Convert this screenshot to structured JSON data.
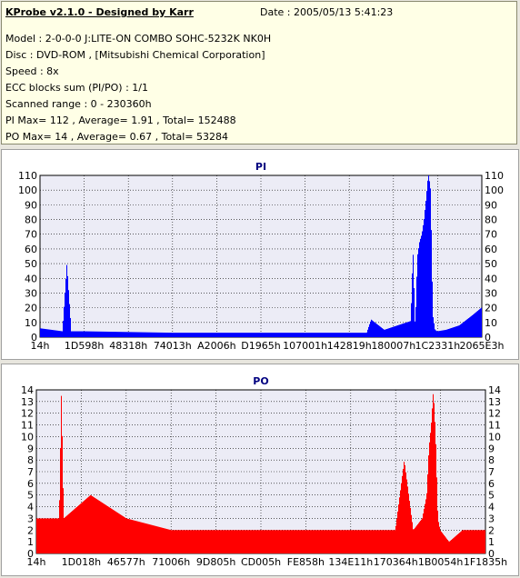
{
  "info": {
    "title": "KProbe v2.1.0 - Designed by Karr",
    "date": "Date : 2005/05/13 5:41:23",
    "lines": [
      "Model : 2-0-0-0 J:LITE-ON COMBO SOHC-5232K NK0H",
      "Disc : DVD-ROM ,  [Mitsubishi Chemical Corporation]",
      "Speed : 8x",
      "ECC blocks sum (PI/PO) : 1/1",
      "Scanned range : 0 - 230360h",
      "PI Max= 112 , Average= 1.91 , Total= 152488",
      "PO Max= 14 , Average= 0.67 , Total= 53284"
    ]
  },
  "chart_data": [
    {
      "type": "bar",
      "title": "PI",
      "color": "#0000ff",
      "ylim": [
        0,
        110
      ],
      "yticks": [
        0,
        10,
        20,
        30,
        40,
        50,
        60,
        70,
        80,
        90,
        100,
        110
      ],
      "xticks": [
        "14h",
        "1D598h",
        "48318h",
        "74013h",
        "A2006h",
        "D1965h",
        "107001h",
        "142819h",
        "180007h",
        "1C2331h",
        "2065E3h"
      ],
      "grid": true,
      "x_fraction": [
        0.0,
        0.05,
        0.06,
        0.07,
        0.1,
        0.3,
        0.5,
        0.7,
        0.74,
        0.75,
        0.78,
        0.8,
        0.82,
        0.84,
        0.845,
        0.85,
        0.855,
        0.86,
        0.865,
        0.87,
        0.875,
        0.88,
        0.885,
        0.89,
        0.895,
        0.9,
        0.92,
        0.95,
        0.98,
        1.0
      ],
      "values": [
        6,
        4,
        50,
        4,
        4,
        3,
        3,
        3,
        3,
        12,
        5,
        7,
        9,
        11,
        60,
        5,
        55,
        65,
        70,
        80,
        95,
        112,
        100,
        15,
        5,
        4,
        5,
        8,
        15,
        20
      ]
    },
    {
      "type": "bar",
      "title": "PO",
      "color": "#ff0000",
      "ylim": [
        0,
        14
      ],
      "yticks": [
        0,
        1,
        2,
        3,
        4,
        5,
        6,
        7,
        8,
        9,
        10,
        11,
        12,
        13,
        14
      ],
      "xticks": [
        "14h",
        "1D018h",
        "46577h",
        "71006h",
        "9D805h",
        "CD005h",
        "FE858h",
        "134E11h",
        "170364h",
        "1B0054h",
        "1F1835h"
      ],
      "grid": true,
      "x_fraction": [
        0.0,
        0.05,
        0.055,
        0.06,
        0.12,
        0.2,
        0.3,
        0.4,
        0.5,
        0.6,
        0.7,
        0.8,
        0.82,
        0.84,
        0.86,
        0.87,
        0.875,
        0.88,
        0.885,
        0.89,
        0.895,
        0.9,
        0.92,
        0.95,
        1.0
      ],
      "values": [
        3,
        3,
        14,
        3,
        5,
        3,
        2,
        2,
        2,
        2,
        2,
        2,
        8,
        2,
        3,
        5,
        9,
        11,
        14,
        10,
        3,
        2,
        1,
        2,
        2
      ]
    }
  ]
}
